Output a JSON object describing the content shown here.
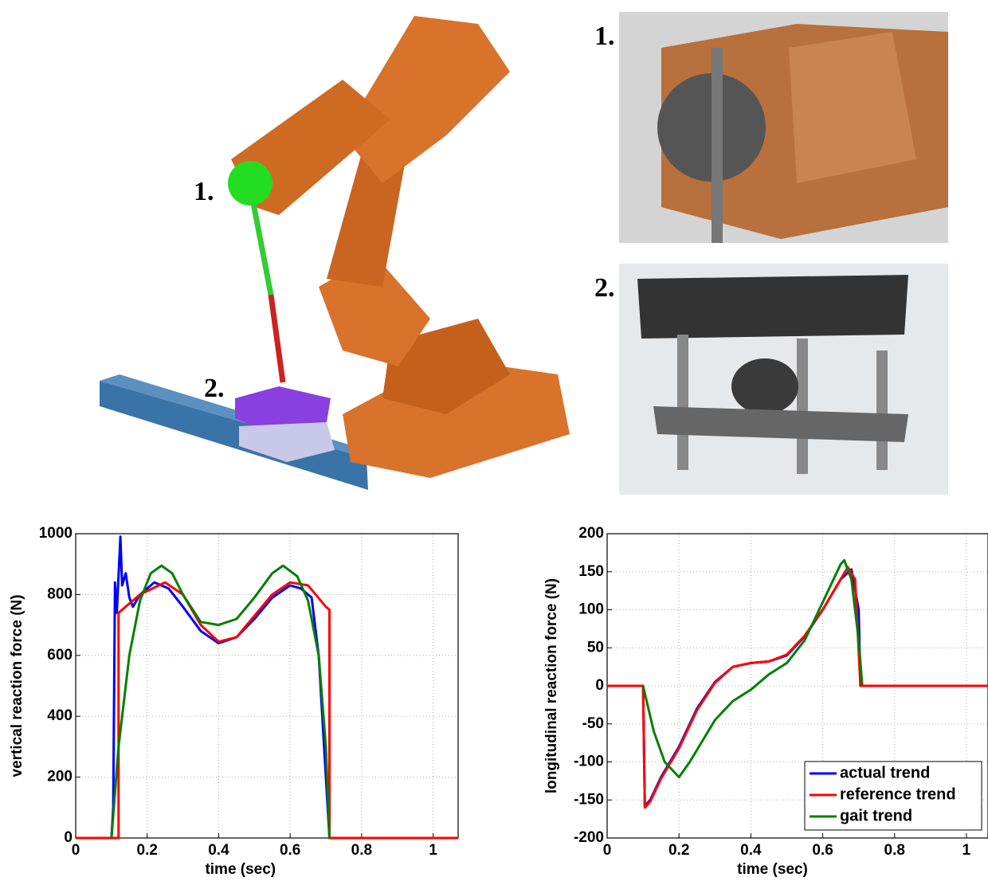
{
  "figure": {
    "left_labels": [
      "1.",
      "2."
    ],
    "right_labels": [
      "1.",
      "2."
    ]
  },
  "chart_data": [
    {
      "type": "line",
      "xlabel": "time (sec)",
      "ylabel": "vertical reaction force (N)",
      "xlim": [
        0,
        1.07
      ],
      "ylim": [
        0,
        1000
      ],
      "xticks": [
        0,
        0.2,
        0.4,
        0.6,
        0.8,
        1
      ],
      "yticks": [
        0,
        200,
        400,
        600,
        800,
        1000
      ],
      "grid": true,
      "series": [
        {
          "color": "#0000ff",
          "x": [
            0,
            0.1,
            0.105,
            0.11,
            0.115,
            0.125,
            0.13,
            0.14,
            0.15,
            0.16,
            0.18,
            0.22,
            0.26,
            0.3,
            0.35,
            0.4,
            0.45,
            0.5,
            0.55,
            0.6,
            0.63,
            0.66,
            0.68,
            0.7,
            0.71,
            1.07
          ],
          "values": [
            0,
            0,
            100,
            840,
            740,
            990,
            830,
            870,
            790,
            760,
            800,
            840,
            820,
            760,
            680,
            640,
            660,
            720,
            790,
            830,
            820,
            790,
            600,
            200,
            0,
            0
          ]
        },
        {
          "color": "#ff0000",
          "x": [
            0,
            0.12,
            0.12,
            0.18,
            0.25,
            0.3,
            0.35,
            0.4,
            0.45,
            0.5,
            0.55,
            0.6,
            0.65,
            0.7,
            0.71,
            0.71,
            1.07
          ],
          "values": [
            0,
            0,
            740,
            800,
            840,
            800,
            700,
            645,
            660,
            730,
            800,
            840,
            830,
            760,
            750,
            0,
            0
          ]
        },
        {
          "color": "#008000",
          "x": [
            0.1,
            0.12,
            0.15,
            0.18,
            0.21,
            0.24,
            0.27,
            0.3,
            0.35,
            0.4,
            0.45,
            0.5,
            0.55,
            0.58,
            0.62,
            0.65,
            0.68,
            0.7,
            0.71
          ],
          "values": [
            0,
            300,
            600,
            780,
            870,
            895,
            870,
            800,
            710,
            700,
            720,
            790,
            870,
            895,
            860,
            780,
            600,
            300,
            0
          ]
        }
      ]
    },
    {
      "type": "line",
      "xlabel": "time (sec)",
      "ylabel": "longitudinal reaction force (N)",
      "xlim": [
        0,
        1.06
      ],
      "ylim": [
        -200,
        200
      ],
      "xticks": [
        0,
        0.2,
        0.4,
        0.6,
        0.8,
        1
      ],
      "yticks": [
        -200,
        -150,
        -100,
        -50,
        0,
        50,
        100,
        150,
        200
      ],
      "grid": true,
      "legend": "lower right",
      "series": [
        {
          "name": "actual trend",
          "color": "#0000ff",
          "x": [
            0,
            0.1,
            0.105,
            0.12,
            0.15,
            0.2,
            0.25,
            0.3,
            0.35,
            0.4,
            0.45,
            0.5,
            0.55,
            0.6,
            0.65,
            0.68,
            0.7,
            0.705,
            1.06
          ],
          "values": [
            0,
            0,
            -158,
            -150,
            -120,
            -80,
            -30,
            5,
            25,
            30,
            32,
            40,
            65,
            100,
            140,
            153,
            100,
            0,
            0
          ]
        },
        {
          "name": "reference trend",
          "color": "#ff0000",
          "x": [
            0,
            0.1,
            0.105,
            0.12,
            0.15,
            0.2,
            0.25,
            0.3,
            0.35,
            0.4,
            0.45,
            0.5,
            0.55,
            0.6,
            0.65,
            0.67,
            0.69,
            0.705,
            1.06
          ],
          "values": [
            0,
            0,
            -160,
            -152,
            -122,
            -82,
            -32,
            4,
            25,
            30,
            32,
            41,
            66,
            100,
            140,
            156,
            140,
            0,
            0
          ]
        },
        {
          "name": "gait trend",
          "color": "#008000",
          "x": [
            0.1,
            0.13,
            0.16,
            0.2,
            0.23,
            0.3,
            0.35,
            0.4,
            0.45,
            0.5,
            0.55,
            0.6,
            0.65,
            0.66,
            0.68,
            0.7,
            0.71
          ],
          "values": [
            0,
            -60,
            -100,
            -120,
            -100,
            -45,
            -20,
            -5,
            15,
            30,
            60,
            110,
            160,
            165,
            140,
            60,
            0
          ]
        }
      ]
    }
  ]
}
